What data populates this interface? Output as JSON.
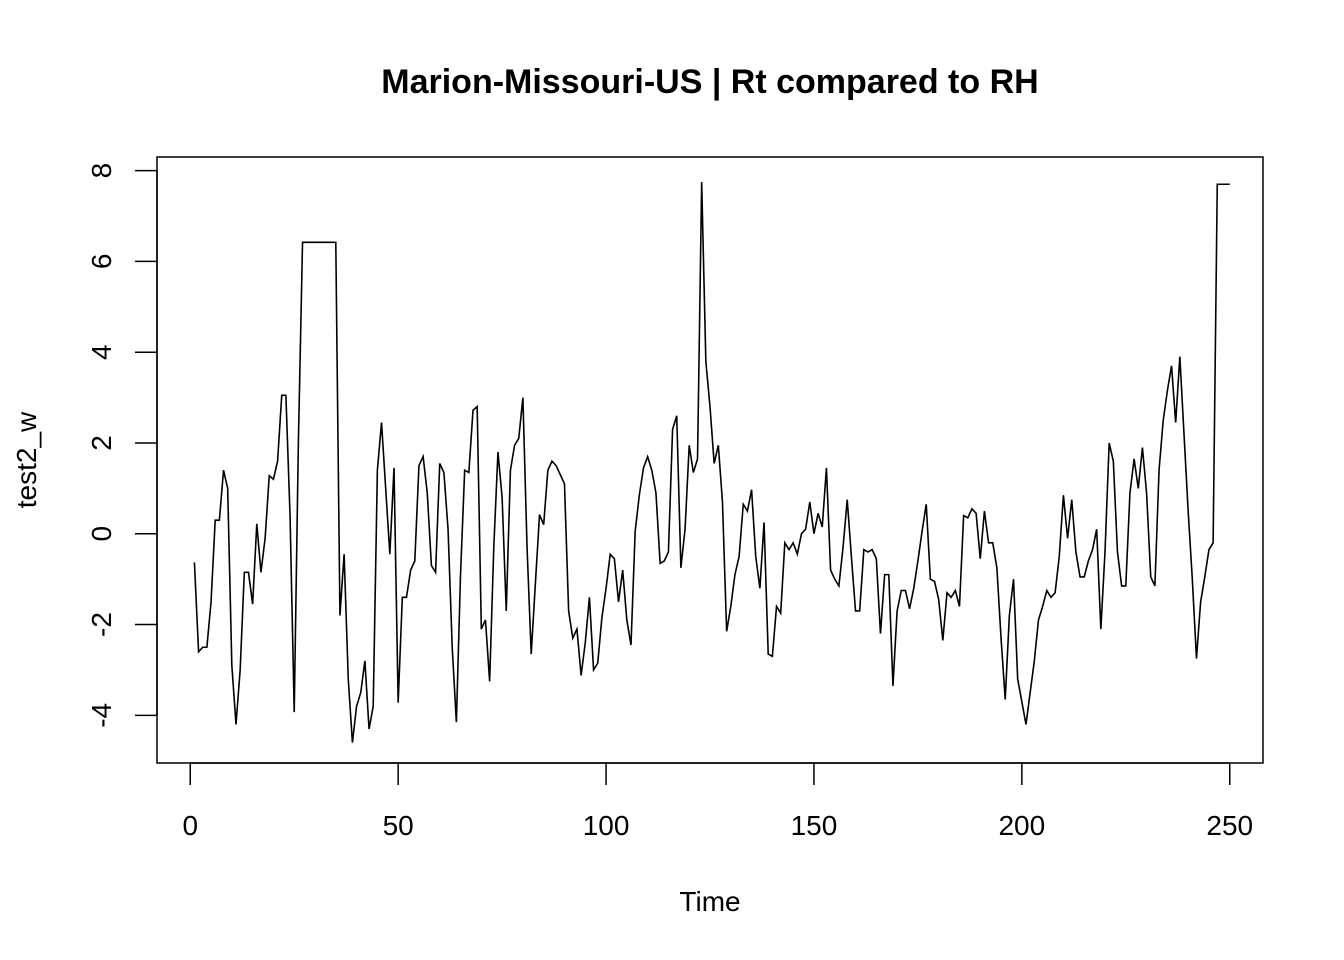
{
  "chart_data": {
    "type": "line",
    "title": "Marion-Missouri-US | Rt compared to RH",
    "xlabel": "Time",
    "ylabel": "test2_w",
    "xlim": [
      -8,
      258
    ],
    "ylim": [
      -5.05,
      8.3
    ],
    "xticks": [
      0,
      50,
      100,
      150,
      200,
      250
    ],
    "yticks": [
      -4,
      -2,
      0,
      2,
      4,
      6,
      8
    ],
    "x_start": 1,
    "grid": false,
    "legend": "none",
    "line_color": "#000000",
    "series": [
      {
        "values": [
          -0.63,
          -2.6,
          -2.5,
          -2.5,
          -1.5,
          0.3,
          0.3,
          1.4,
          1.0,
          -2.9,
          -4.2,
          -3.0,
          -0.85,
          -0.85,
          -1.55,
          0.22,
          -0.85,
          -0.1,
          1.28,
          1.2,
          1.6,
          3.05,
          3.05,
          0.4,
          -3.93,
          2.0,
          6.42,
          6.42,
          6.42,
          6.42,
          6.42,
          6.42,
          6.42,
          6.42,
          6.42,
          -1.8,
          -0.45,
          -3.2,
          -4.6,
          -3.8,
          -3.5,
          -2.8,
          -4.3,
          -3.8,
          1.4,
          2.45,
          1.0,
          -0.45,
          1.45,
          -3.72,
          -1.4,
          -1.4,
          -0.8,
          -0.6,
          1.5,
          1.7,
          0.9,
          -0.7,
          -0.85,
          1.55,
          1.35,
          0.1,
          -2.5,
          -4.15,
          -0.9,
          1.4,
          1.35,
          2.72,
          2.8,
          -2.1,
          -1.9,
          -3.25,
          -0.3,
          1.8,
          0.8,
          -1.7,
          1.4,
          1.95,
          2.1,
          3.0,
          -0.3,
          -2.65,
          -1.1,
          0.42,
          0.2,
          1.4,
          1.6,
          1.5,
          1.3,
          1.1,
          -1.7,
          -2.3,
          -2.1,
          -3.12,
          -2.4,
          -1.4,
          -3.0,
          -2.85,
          -1.85,
          -1.2,
          -0.45,
          -0.55,
          -1.5,
          -0.8,
          -1.9,
          -2.45,
          0.05,
          0.85,
          1.45,
          1.7,
          1.4,
          0.9,
          -0.65,
          -0.6,
          -0.4,
          2.3,
          2.6,
          -0.75,
          0.1,
          1.95,
          1.35,
          1.65,
          7.75,
          3.8,
          2.8,
          1.55,
          1.95,
          0.7,
          -2.15,
          -1.6,
          -0.9,
          -0.5,
          0.65,
          0.5,
          0.97,
          -0.5,
          -1.2,
          0.25,
          -2.65,
          -2.7,
          -1.6,
          -1.75,
          -0.2,
          -0.35,
          -0.2,
          -0.45,
          0.0,
          0.1,
          0.7,
          0.0,
          0.45,
          0.15,
          1.45,
          -0.8,
          -1.0,
          -1.15,
          -0.3,
          0.75,
          -0.5,
          -1.7,
          -1.7,
          -0.35,
          -0.4,
          -0.35,
          -0.55,
          -2.2,
          -0.9,
          -0.9,
          -3.35,
          -1.7,
          -1.25,
          -1.25,
          -1.65,
          -1.2,
          -0.6,
          0.05,
          0.65,
          -1.0,
          -1.05,
          -1.45,
          -2.35,
          -1.3,
          -1.4,
          -1.25,
          -1.6,
          0.4,
          0.35,
          0.55,
          0.45,
          -0.55,
          0.5,
          -0.2,
          -0.2,
          -0.75,
          -2.3,
          -3.65,
          -1.8,
          -1.0,
          -3.2,
          -3.7,
          -4.2,
          -3.5,
          -2.8,
          -1.9,
          -1.6,
          -1.25,
          -1.4,
          -1.3,
          -0.5,
          0.85,
          -0.1,
          0.75,
          -0.4,
          -0.95,
          -0.95,
          -0.6,
          -0.35,
          0.1,
          -2.1,
          -0.4,
          2.0,
          1.6,
          -0.4,
          -1.15,
          -1.15,
          0.9,
          1.65,
          1.0,
          1.9,
          0.9,
          -0.95,
          -1.15,
          1.4,
          2.5,
          3.15,
          3.7,
          2.45,
          3.9,
          2.2,
          0.5,
          -1.0,
          -2.75,
          -1.5,
          -0.95,
          -0.35,
          -0.2,
          7.7,
          7.7,
          7.7,
          7.7
        ]
      }
    ]
  }
}
